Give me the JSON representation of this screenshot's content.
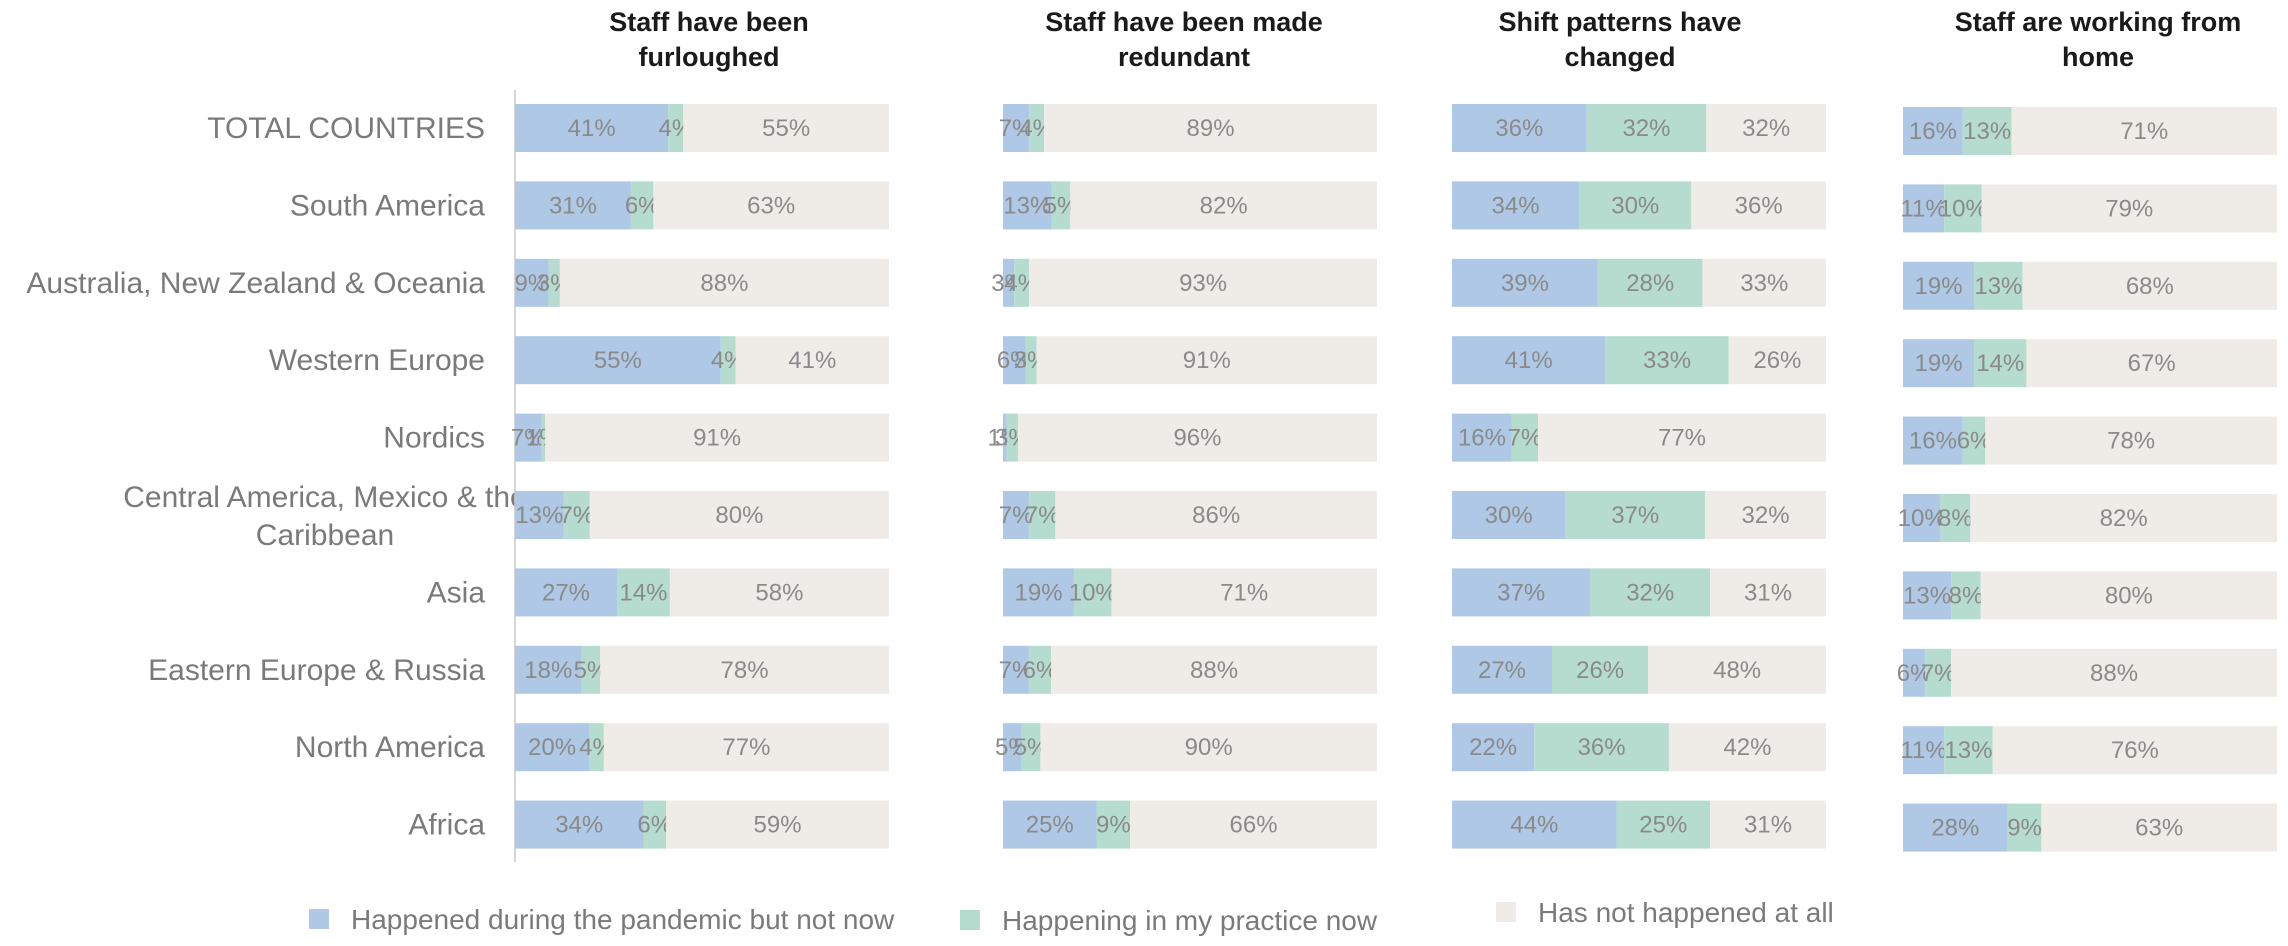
{
  "chart_data": {
    "type": "bar",
    "orientation": "horizontal",
    "stacked": true,
    "value_unit": "%",
    "categories": [
      "TOTAL COUNTRIES",
      "South America",
      "Australia, New Zealand & Oceania",
      "Western Europe",
      "Nordics",
      "Central America, Mexico & the Caribbean",
      "Asia",
      "Eastern Europe & Russia",
      "North America",
      "Africa"
    ],
    "legend": {
      "position": "bottom",
      "items": [
        {
          "name": "Happened during the pandemic but not now",
          "color": "#aec8e5"
        },
        {
          "name": "Happening in my practice now",
          "color": "#b5dccf"
        },
        {
          "name": "Has not happened at all",
          "color": "#efece8"
        }
      ]
    },
    "grid": false,
    "panels": [
      {
        "title": "Staff have been furloughed",
        "series": [
          {
            "name": "Happened during the pandemic but not now",
            "values": [
              41,
              31,
              9,
              55,
              7,
              13,
              27,
              18,
              20,
              34
            ]
          },
          {
            "name": "Happening in my practice now",
            "values": [
              4,
              6,
              3,
              4,
              1,
              7,
              14,
              5,
              4,
              6
            ]
          },
          {
            "name": "Has not happened at all",
            "values": [
              55,
              63,
              88,
              41,
              91,
              80,
              58,
              78,
              77,
              59
            ]
          }
        ]
      },
      {
        "title": "Staff have been made redundant",
        "series": [
          {
            "name": "Happened during the pandemic but not now",
            "values": [
              7,
              13,
              3,
              6,
              1,
              7,
              19,
              7,
              5,
              25
            ]
          },
          {
            "name": "Happening in my practice now",
            "values": [
              4,
              5,
              4,
              3,
              3,
              7,
              10,
              6,
              5,
              9
            ]
          },
          {
            "name": "Has not happened at all",
            "values": [
              89,
              82,
              93,
              91,
              96,
              86,
              71,
              88,
              90,
              66
            ]
          }
        ]
      },
      {
        "title": "Shift patterns have changed",
        "series": [
          {
            "name": "Happened during the pandemic but not now",
            "values": [
              36,
              34,
              39,
              41,
              16,
              30,
              37,
              27,
              22,
              44
            ]
          },
          {
            "name": "Happening in my practice now",
            "values": [
              32,
              30,
              28,
              33,
              7,
              37,
              32,
              26,
              36,
              25
            ]
          },
          {
            "name": "Has not happened at all",
            "values": [
              32,
              36,
              33,
              26,
              77,
              32,
              31,
              48,
              42,
              31
            ]
          }
        ]
      },
      {
        "title": "Staff are working from home",
        "series": [
          {
            "name": "Happened during the pandemic but not now",
            "values": [
              16,
              11,
              19,
              19,
              16,
              10,
              13,
              6,
              11,
              28
            ]
          },
          {
            "name": "Happening in my practice now",
            "values": [
              13,
              10,
              13,
              14,
              6,
              8,
              8,
              7,
              13,
              9
            ]
          },
          {
            "name": "Has not happened at all",
            "values": [
              71,
              79,
              68,
              67,
              78,
              82,
              80,
              88,
              76,
              63
            ]
          }
        ]
      }
    ]
  }
}
